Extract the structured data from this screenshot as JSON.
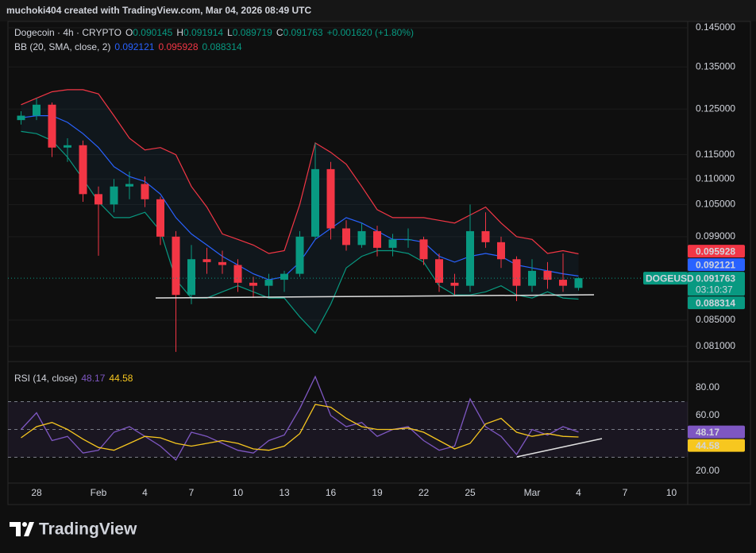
{
  "header": "muchoki404 created with TradingView.com, Mar 04, 2026 08:49 UTC",
  "brand": "TradingView",
  "chart_data": [
    {
      "type": "candlestick",
      "title": "Dogecoin · 4h · CRYPTO",
      "ohlc_labels": [
        "O",
        "H",
        "L",
        "C"
      ],
      "change": "+0.001620 (+1.80%)",
      "symbol": "DOGEUSD",
      "countdown": "03:10:37",
      "overlay_title": "BB (20, SMA, close, 2)",
      "up_color": "#089981",
      "down_color": "#f23645",
      "categories": [
        null,
        "28",
        null,
        null,
        null,
        "Feb",
        null,
        null,
        "4",
        null,
        null,
        "7",
        null,
        null,
        "10",
        null,
        null,
        "13",
        null,
        null,
        "16",
        null,
        null,
        "19",
        null,
        null,
        "22",
        null,
        null,
        "25",
        null,
        null,
        null,
        "Mar",
        null,
        null,
        "4",
        null,
        null,
        "7",
        null,
        null,
        "10"
      ],
      "open": [
        0.1225,
        0.1235,
        0.126,
        0.1165,
        0.117,
        0.107,
        0.105,
        0.1085,
        0.109,
        0.106,
        0.099,
        0.089,
        0.095,
        0.0945,
        0.094,
        0.091,
        0.0905,
        0.0915,
        0.0925,
        0.099,
        0.112,
        0.1005,
        0.0975,
        0.1,
        0.097,
        0.0985,
        0.0985,
        0.095,
        0.091,
        0.0905,
        0.1,
        0.098,
        0.095,
        0.0905,
        0.093,
        0.0915,
        0.090145,
        null,
        null,
        null,
        null,
        null,
        null
      ],
      "high": [
        0.1245,
        0.1275,
        0.1265,
        0.1185,
        0.118,
        0.1085,
        0.11,
        0.1115,
        0.1105,
        0.1065,
        0.1,
        0.0975,
        0.097,
        0.0965,
        0.095,
        0.092,
        0.0925,
        0.093,
        0.1,
        0.1175,
        0.1135,
        0.102,
        0.1015,
        0.101,
        0.0995,
        0.1005,
        0.099,
        0.096,
        0.0925,
        0.105,
        0.1035,
        0.099,
        0.0955,
        0.095,
        0.0945,
        0.096,
        0.091914,
        null,
        null,
        null,
        null,
        null,
        null
      ],
      "low": [
        0.1215,
        0.1225,
        0.1145,
        0.1135,
        0.1055,
        0.0956,
        0.1035,
        0.106,
        0.1045,
        0.0975,
        0.0802,
        0.0875,
        0.0925,
        0.0925,
        0.0895,
        0.0885,
        0.0885,
        0.0895,
        0.092,
        0.0985,
        0.0985,
        0.0965,
        0.097,
        0.0955,
        0.0955,
        0.097,
        0.094,
        0.0895,
        0.089,
        0.0895,
        0.097,
        0.0935,
        0.088,
        0.0895,
        0.09,
        0.0895,
        0.089719,
        null,
        null,
        null,
        null,
        null,
        null
      ],
      "close": [
        0.1235,
        0.126,
        0.1165,
        0.117,
        0.107,
        0.105,
        0.1085,
        0.109,
        0.106,
        0.099,
        0.089,
        0.095,
        0.0945,
        0.094,
        0.091,
        0.0905,
        0.0915,
        0.0925,
        0.099,
        0.112,
        0.1005,
        0.0975,
        0.1,
        0.097,
        0.0985,
        0.0985,
        0.095,
        0.091,
        0.0905,
        0.1,
        0.098,
        0.095,
        0.0905,
        0.093,
        0.0915,
        0.0905,
        0.091763,
        null,
        null,
        null,
        null,
        null,
        null
      ],
      "series": [
        {
          "color": "#2962ff",
          "values": [
            0.123,
            0.1235,
            0.1235,
            0.122,
            0.1195,
            0.1165,
            0.1125,
            0.1105,
            0.1095,
            0.107,
            0.1025,
            0.0995,
            0.0975,
            0.0955,
            0.094,
            0.0925,
            0.0915,
            0.092,
            0.0945,
            0.0985,
            0.1005,
            0.1025,
            0.1015,
            0.1,
            0.0985,
            0.0985,
            0.098,
            0.0955,
            0.0945,
            0.0955,
            0.096,
            0.0955,
            0.094,
            0.0935,
            0.093,
            0.0925,
            0.092121,
            null,
            null,
            null,
            null,
            null,
            null
          ]
        },
        {
          "color": "#f23645",
          "values": [
            0.126,
            0.1275,
            0.129,
            0.1295,
            0.1295,
            0.1285,
            0.1235,
            0.1185,
            0.116,
            0.1165,
            0.115,
            0.1085,
            0.1045,
            0.0995,
            0.0985,
            0.0975,
            0.096,
            0.0965,
            0.105,
            0.1175,
            0.1155,
            0.113,
            0.1085,
            0.104,
            0.1025,
            0.1025,
            0.1025,
            0.102,
            0.1015,
            0.103,
            0.1045,
            0.1015,
            0.099,
            0.0985,
            0.096,
            0.0965,
            0.095928,
            null,
            null,
            null,
            null,
            null,
            null
          ]
        },
        {
          "color": "#089981",
          "values": [
            0.12,
            0.1195,
            0.118,
            0.1145,
            0.11,
            0.1055,
            0.1025,
            0.1025,
            0.1035,
            0.1,
            0.0915,
            0.0885,
            0.0885,
            0.0895,
            0.0905,
            0.0895,
            0.0885,
            0.0885,
            0.0855,
            0.083,
            0.0875,
            0.0935,
            0.0955,
            0.0965,
            0.0965,
            0.096,
            0.0945,
            0.0905,
            0.089,
            0.089,
            0.0895,
            0.0905,
            0.089,
            0.0885,
            0.0895,
            0.0885,
            0.088314,
            null,
            null,
            null,
            null,
            null,
            null
          ]
        }
      ],
      "ylim": [
        0.0788,
        0.1467
      ],
      "log_scale": true,
      "grid": true,
      "yticks": [
        {
          "value": 0.145,
          "label": "0.145000"
        },
        {
          "value": 0.135,
          "label": "0.135000"
        },
        {
          "value": 0.125,
          "label": "0.125000"
        },
        {
          "value": 0.115,
          "label": "0.115000"
        },
        {
          "value": 0.11,
          "label": "0.110000"
        },
        {
          "value": 0.105,
          "label": "0.105000"
        },
        {
          "value": 0.099,
          "label": "0.099000"
        },
        {
          "value": 0.085,
          "label": "0.085000"
        },
        {
          "value": 0.081,
          "label": "0.081000"
        }
      ]
    },
    {
      "type": "line",
      "title": "RSI (14, close)",
      "series": [
        {
          "color": "#7e57c2",
          "values": [
            50,
            62,
            42,
            45,
            33,
            35,
            48,
            52,
            45,
            38,
            28,
            48,
            45,
            40,
            35,
            33,
            42,
            46,
            65,
            88,
            60,
            52,
            55,
            45,
            50,
            52,
            42,
            35,
            38,
            72,
            52,
            45,
            32,
            50,
            46,
            52,
            48.17,
            null,
            null,
            null,
            null,
            null,
            null
          ]
        },
        {
          "color": "#f7c71f",
          "values": [
            44,
            52,
            55,
            50,
            43,
            37,
            35,
            40,
            45,
            44,
            40,
            38,
            40,
            42,
            40,
            36,
            35,
            38,
            47,
            68,
            66,
            58,
            52,
            50,
            50,
            51,
            48,
            42,
            36,
            40,
            54,
            58,
            48,
            45,
            47,
            45,
            44.58,
            null,
            null,
            null,
            null,
            null,
            null
          ]
        }
      ],
      "levels": [
        70,
        50,
        30
      ],
      "band_color": "#7e57c2",
      "ylim": [
        11.4,
        96
      ],
      "yticks": [
        {
          "value": 80,
          "label": "80.00"
        },
        {
          "value": 60,
          "label": "60.00"
        },
        {
          "value": 20,
          "label": "20.00"
        }
      ]
    }
  ]
}
